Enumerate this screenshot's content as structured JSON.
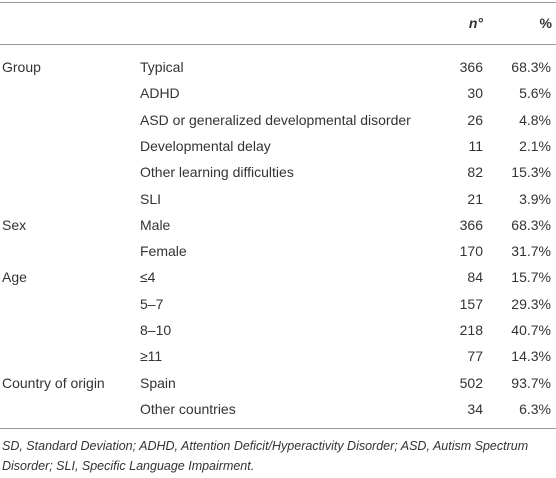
{
  "table": {
    "header": {
      "n": "n°",
      "pct": "%"
    },
    "groups": [
      {
        "label": "Group",
        "rows": [
          {
            "label": "Typical",
            "n": 366,
            "pct": "68.3%"
          },
          {
            "label": "ADHD",
            "n": 30,
            "pct": "5.6%"
          },
          {
            "label": "ASD or generalized developmental disorder",
            "n": 26,
            "pct": "4.8%"
          },
          {
            "label": "Developmental delay",
            "n": 11,
            "pct": "2.1%"
          },
          {
            "label": "Other learning difficulties",
            "n": 82,
            "pct": "15.3%"
          },
          {
            "label": "SLI",
            "n": 21,
            "pct": "3.9%"
          }
        ]
      },
      {
        "label": "Sex",
        "rows": [
          {
            "label": "Male",
            "n": 366,
            "pct": "68.3%"
          },
          {
            "label": "Female",
            "n": 170,
            "pct": "31.7%"
          }
        ]
      },
      {
        "label": "Age",
        "rows": [
          {
            "label": "≤4",
            "n": 84,
            "pct": "15.7%"
          },
          {
            "label": "5–7",
            "n": 157,
            "pct": "29.3%"
          },
          {
            "label": "8–10",
            "n": 218,
            "pct": "40.7%"
          },
          {
            "label": "≥11",
            "n": 77,
            "pct": "14.3%"
          }
        ]
      },
      {
        "label": "Country of origin",
        "rows": [
          {
            "label": "Spain",
            "n": 502,
            "pct": "93.7%"
          },
          {
            "label": "Other countries",
            "n": 34,
            "pct": "6.3%"
          }
        ]
      }
    ],
    "footnote": "SD, Standard Deviation; ADHD, Attention Deficit/Hyperactivity Disorder; ASD, Autism Spectrum Disorder; SLI, Specific Language Impairment."
  }
}
